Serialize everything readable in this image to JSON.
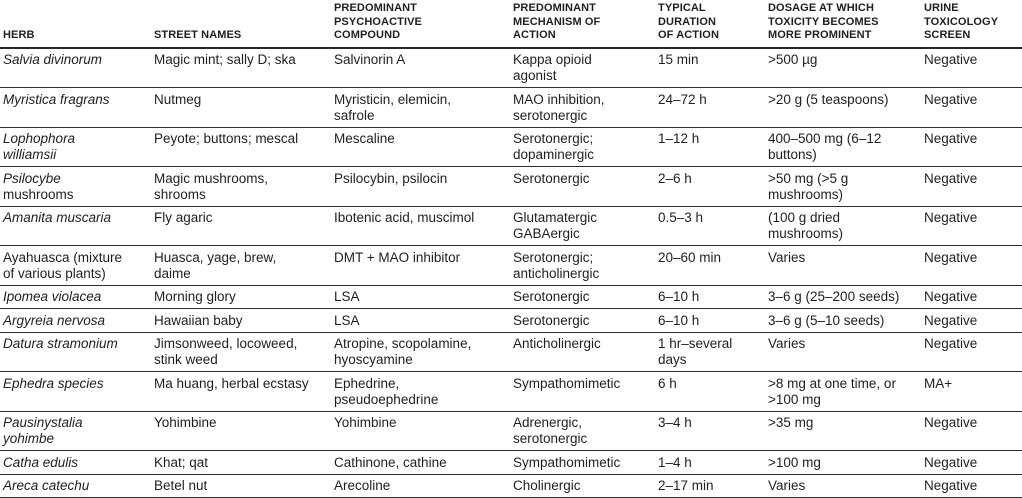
{
  "table": {
    "text_color": "#1f1f1f",
    "rule_color": "#2e2e2e",
    "columns": [
      {
        "key": "herb",
        "label": "HERB"
      },
      {
        "key": "street_names",
        "label": "STREET NAMES"
      },
      {
        "key": "compound",
        "label": "PREDOMINANT\nPSYCHOACTIVE\nCOMPOUND"
      },
      {
        "key": "mechanism",
        "label": "PREDOMINANT\nMECHANISM OF\nACTION"
      },
      {
        "key": "duration",
        "label": "TYPICAL\nDURATION\nOF ACTION"
      },
      {
        "key": "dosage",
        "label": "DOSAGE AT WHICH\nTOXICITY BECOMES\nMORE PROMINENT"
      },
      {
        "key": "urine",
        "label": "URINE\nTOXICOLOGY\nSCREEN"
      }
    ],
    "rows": [
      {
        "herb_italic": "Salvia divinorum",
        "herb_roman": "",
        "street_names": "Magic mint; sally D; ska",
        "compound": "Salvinorin A",
        "mechanism": "Kappa opioid agonist",
        "duration": "15 min",
        "dosage": ">500 µg",
        "urine": "Negative"
      },
      {
        "herb_italic": "Myristica fragrans",
        "herb_roman": "",
        "street_names": "Nutmeg",
        "compound": "Myristicin, elemicin, safrole",
        "mechanism": "MAO inhibition, serotonergic",
        "duration": "24–72 h",
        "dosage": ">20 g (5 teaspoons)",
        "urine": "Negative"
      },
      {
        "herb_italic": "Lophophora williamsii",
        "herb_roman": "",
        "street_names": "Peyote; buttons; mescal",
        "compound": "Mescaline",
        "mechanism": "Serotonergic; dopaminergic",
        "duration": "1–12 h",
        "dosage": "400–500 mg (6–12 buttons)",
        "urine": "Negative"
      },
      {
        "herb_italic": "Psilocybe",
        "herb_roman": "mushrooms",
        "street_names": "Magic mushrooms, shrooms",
        "compound": "Psilocybin, psilocin",
        "mechanism": "Serotonergic",
        "duration": "2–6 h",
        "dosage": ">50 mg (>5 g mushrooms)",
        "urine": "Negative"
      },
      {
        "herb_italic": "Amanita muscaria",
        "herb_roman": "",
        "street_names": "Fly agaric",
        "compound": "Ibotenic acid, muscimol",
        "mechanism": "Glutamatergic GABAergic",
        "duration": "0.5–3 h",
        "dosage": "(100 g dried mushrooms)",
        "urine": "Negative"
      },
      {
        "herb_italic": "",
        "herb_roman": "Ayahuasca (mixture of various plants)",
        "street_names": "Huasca, yage, brew, daime",
        "compound": "DMT + MAO inhibitor",
        "mechanism": "Serotonergic; anticholinergic",
        "duration": "20–60 min",
        "dosage": "Varies",
        "urine": "Negative"
      },
      {
        "herb_italic": "Ipomea violacea",
        "herb_roman": "",
        "street_names": "Morning glory",
        "compound": "LSA",
        "mechanism": "Serotonergic",
        "duration": "6–10 h",
        "dosage": "3–6 g (25–200 seeds)",
        "urine": "Negative"
      },
      {
        "herb_italic": "Argyreia nervosa",
        "herb_roman": "",
        "street_names": "Hawaiian baby",
        "compound": "LSA",
        "mechanism": "Serotonergic",
        "duration": "6–10 h",
        "dosage": "3–6 g (5–10 seeds)",
        "urine": "Negative"
      },
      {
        "herb_italic": "Datura stramonium",
        "herb_roman": "",
        "street_names": "Jimsonweed, locoweed, stink weed",
        "compound": "Atropine, scopolamine, hyoscyamine",
        "mechanism": "Anticholinergic",
        "duration": "1 hr–several days",
        "dosage": "Varies",
        "urine": "Negative"
      },
      {
        "herb_italic": "Ephedra species",
        "herb_roman": "",
        "street_names": "Ma huang, herbal ecstasy",
        "compound": "Ephedrine, pseudoephedrine",
        "mechanism": "Sympathomimetic",
        "duration": "6 h",
        "dosage": ">8 mg at one time, or >100 mg",
        "urine": "MA+"
      },
      {
        "herb_italic": "Pausinystalia yohimbe",
        "herb_roman": "",
        "street_names": "Yohimbine",
        "compound": "Yohimbine",
        "mechanism": "Adrenergic, serotonergic",
        "duration": "3–4 h",
        "dosage": ">35 mg",
        "urine": "Negative"
      },
      {
        "herb_italic": "Catha edulis",
        "herb_roman": "",
        "street_names": "Khat; qat",
        "compound": "Cathinone, cathine",
        "mechanism": "Sympathomimetic",
        "duration": "1–4 h",
        "dosage": ">100 mg",
        "urine": "Negative"
      },
      {
        "herb_italic": "Areca catechu",
        "herb_roman": "",
        "street_names": "Betel nut",
        "compound": "Arecoline",
        "mechanism": "Cholinergic",
        "duration": "2–17 min",
        "dosage": "Varies",
        "urine": "Negative"
      }
    ]
  }
}
